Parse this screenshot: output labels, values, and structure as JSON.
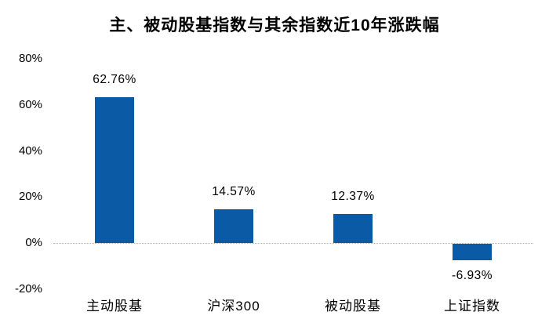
{
  "chart_data": {
    "type": "bar",
    "title": "主、被动股基指数与其余指数近10年涨跌幅",
    "categories": [
      "主动股基",
      "沪深300",
      "被动股基",
      "上证指数"
    ],
    "values": [
      62.76,
      14.57,
      12.37,
      -6.93
    ],
    "value_labels": [
      "62.76%",
      "14.57%",
      "12.37%",
      "-6.93%"
    ],
    "ylim": [
      -20,
      80
    ],
    "ytick_values": [
      80,
      60,
      40,
      20,
      0,
      -20
    ],
    "ytick_labels": [
      "80%",
      "60%",
      "40%",
      "20%",
      "0%",
      "-20%"
    ],
    "xlabel": "",
    "ylabel": "",
    "bar_color": "#0B5AA6",
    "grid": "zero-line-only",
    "legend": "none",
    "background_color": "#ffffff"
  }
}
